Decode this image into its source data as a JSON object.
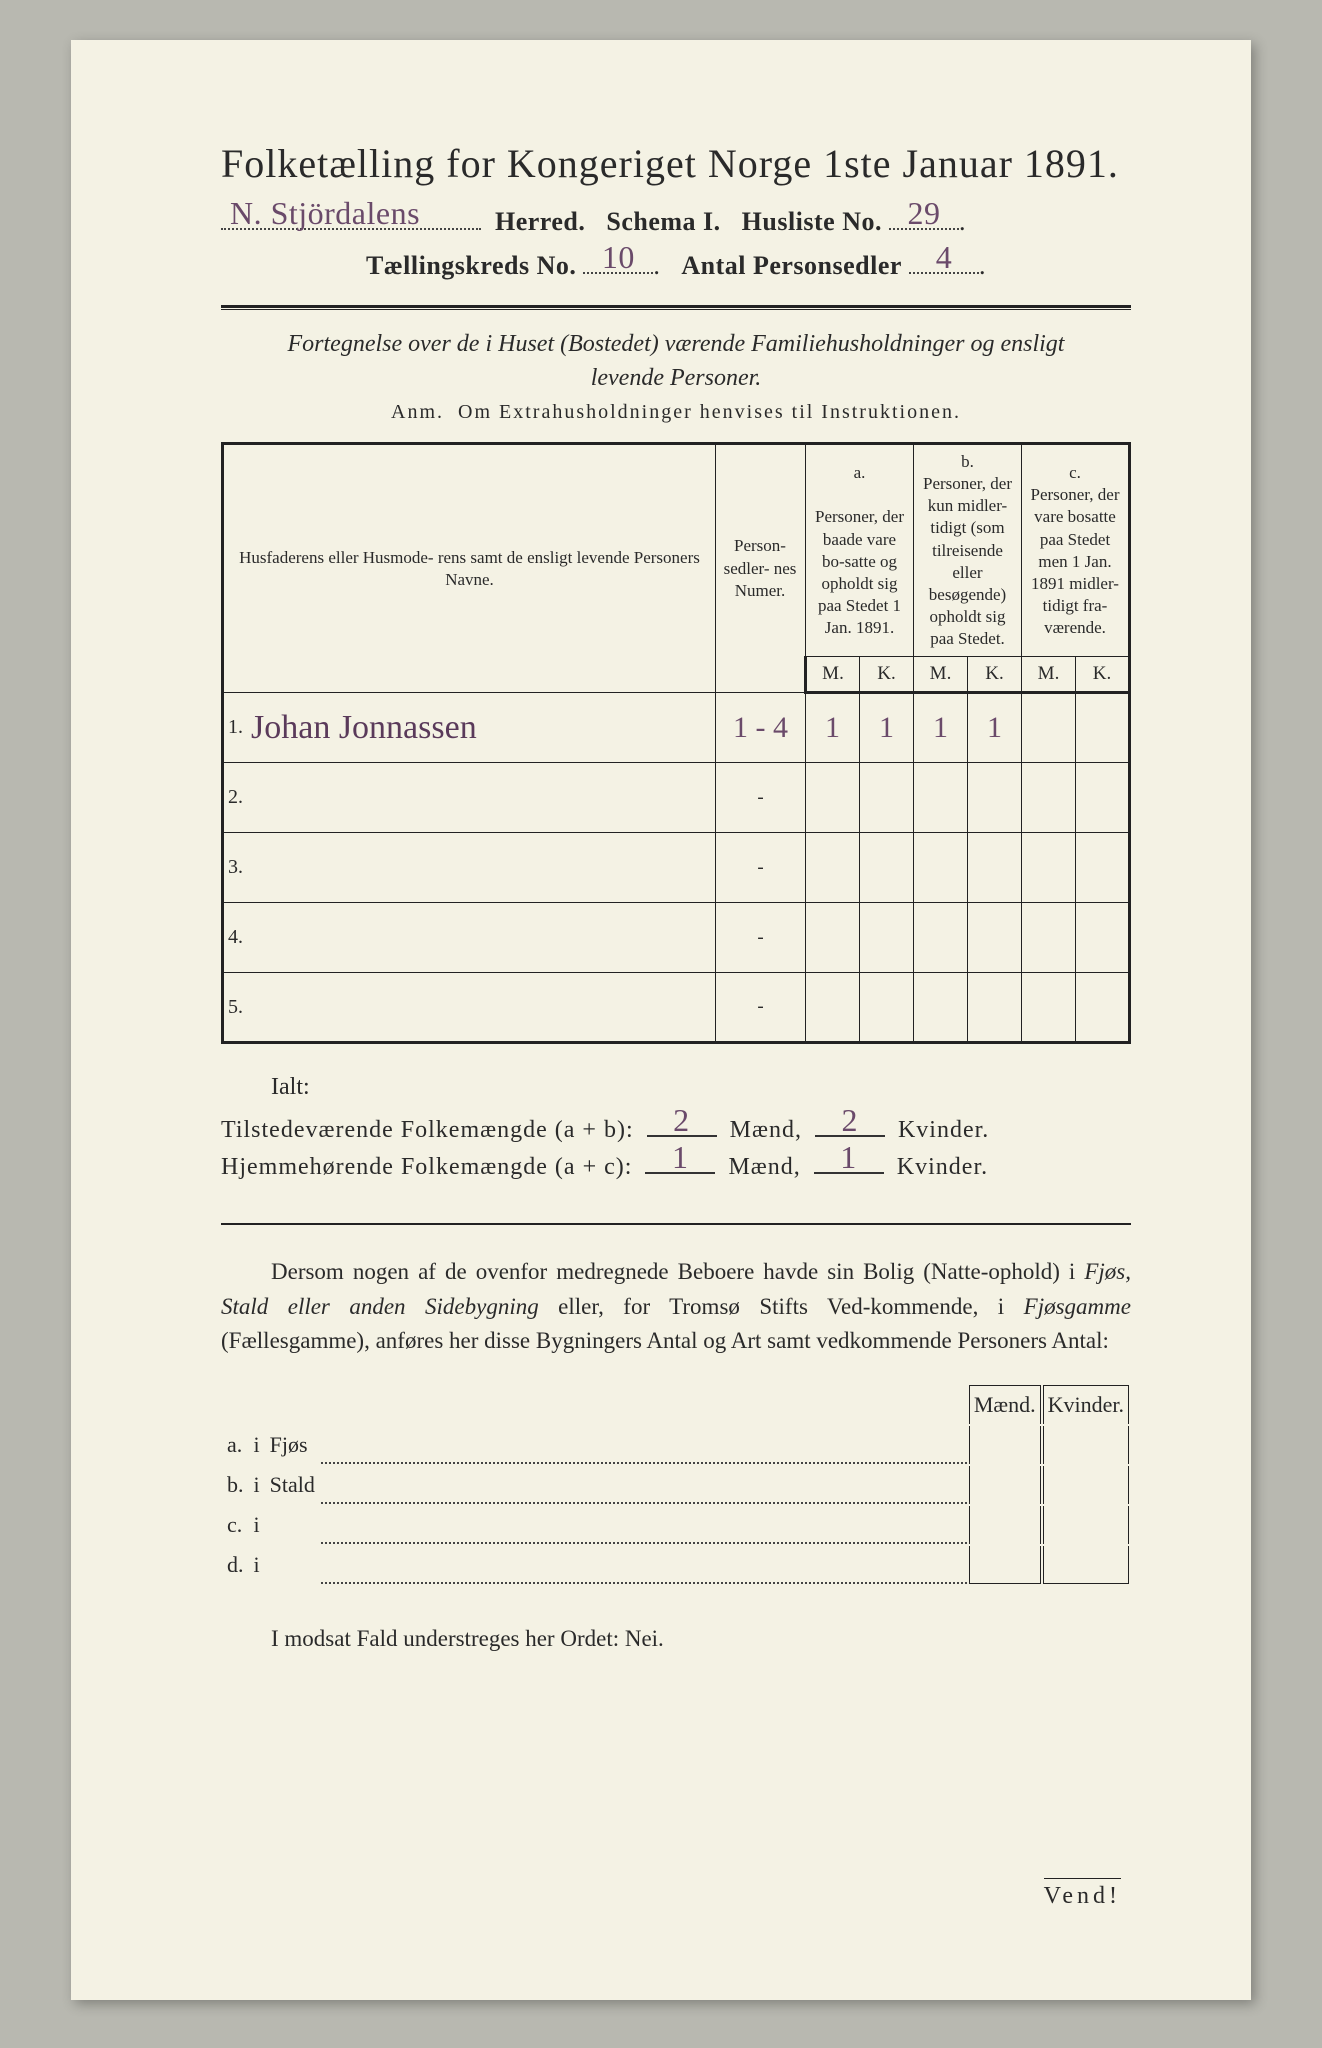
{
  "title": "Folketælling for Kongeriget Norge 1ste Januar 1891.",
  "header": {
    "herred_value": "N. Stjördalens",
    "herred_label": "Herred.",
    "schema_label": "Schema I.",
    "husliste_label": "Husliste No.",
    "husliste_value": "29",
    "kreds_label": "Tællingskreds No.",
    "kreds_value": "10",
    "antal_label": "Antal Personsedler",
    "antal_value": "4"
  },
  "subtitle_line1": "Fortegnelse over de i Huset (Bostedet) værende Familiehusholdninger og ensligt",
  "subtitle_line2": "levende Personer.",
  "anm_label": "Anm.",
  "anm_text": "Om Extrahusholdninger henvises til Instruktionen.",
  "table": {
    "col_names": "Husfaderens eller Husmode-\nrens samt de ensligt levende\nPersoners Navne.",
    "col_ps": "Person-\nsedler-\nnes\nNumer.",
    "col_a_label": "a.",
    "col_a_text": "Personer, der baade vare bo-satte og opholdt sig paa Stedet 1 Jan. 1891.",
    "col_b_label": "b.",
    "col_b_text": "Personer, der kun midler-tidigt (som tilreisende eller besøgende) opholdt sig paa Stedet.",
    "col_c_label": "c.",
    "col_c_text": "Personer, der vare bosatte paa Stedet men 1 Jan. 1891 midler-tidigt fra-værende.",
    "m": "M.",
    "k": "K.",
    "rows": [
      {
        "n": "1.",
        "name": "Johan Jonnassen",
        "ps": "1 - 4",
        "a_m": "1",
        "a_k": "1",
        "b_m": "1",
        "b_k": "1",
        "c_m": "",
        "c_k": ""
      },
      {
        "n": "2.",
        "name": "",
        "ps": "-",
        "a_m": "",
        "a_k": "",
        "b_m": "",
        "b_k": "",
        "c_m": "",
        "c_k": ""
      },
      {
        "n": "3.",
        "name": "",
        "ps": "-",
        "a_m": "",
        "a_k": "",
        "b_m": "",
        "b_k": "",
        "c_m": "",
        "c_k": ""
      },
      {
        "n": "4.",
        "name": "",
        "ps": "-",
        "a_m": "",
        "a_k": "",
        "b_m": "",
        "b_k": "",
        "c_m": "",
        "c_k": ""
      },
      {
        "n": "5.",
        "name": "",
        "ps": "-",
        "a_m": "",
        "a_k": "",
        "b_m": "",
        "b_k": "",
        "c_m": "",
        "c_k": ""
      }
    ]
  },
  "ialt_label": "Ialt:",
  "totals": {
    "line1_label": "Tilstedeværende Folkemængde (a + b):",
    "line1_m": "2",
    "line1_k": "2",
    "line2_label": "Hjemmehørende Folkemængde (a + c):",
    "line2_m": "1",
    "line2_k": "1",
    "maend": "Mænd,",
    "kvinder": "Kvinder."
  },
  "para": "Dersom nogen af de ovenfor medregnede Beboere havde sin Bolig (Natte-ophold) i Fjøs, Stald eller anden Sidebygning eller, for Tromsø Stifts Ved-kommende, i Fjøsgamme (Fællesgamme), anføres her disse Bygningers Antal og Art samt vedkommende Personers Antal:",
  "side": {
    "maend": "Mænd.",
    "kvinder": "Kvinder.",
    "rows": [
      {
        "k": "a.",
        "i": "i",
        "label": "Fjøs"
      },
      {
        "k": "b.",
        "i": "i",
        "label": "Stald"
      },
      {
        "k": "c.",
        "i": "i",
        "label": ""
      },
      {
        "k": "d.",
        "i": "i",
        "label": ""
      }
    ]
  },
  "final": "I modsat Fald understreges her Ordet: Nei.",
  "vend": "Vend!",
  "colors": {
    "paper": "#f4f2e4",
    "ink": "#2a2a2a",
    "handwriting": "#6a4a6a"
  }
}
